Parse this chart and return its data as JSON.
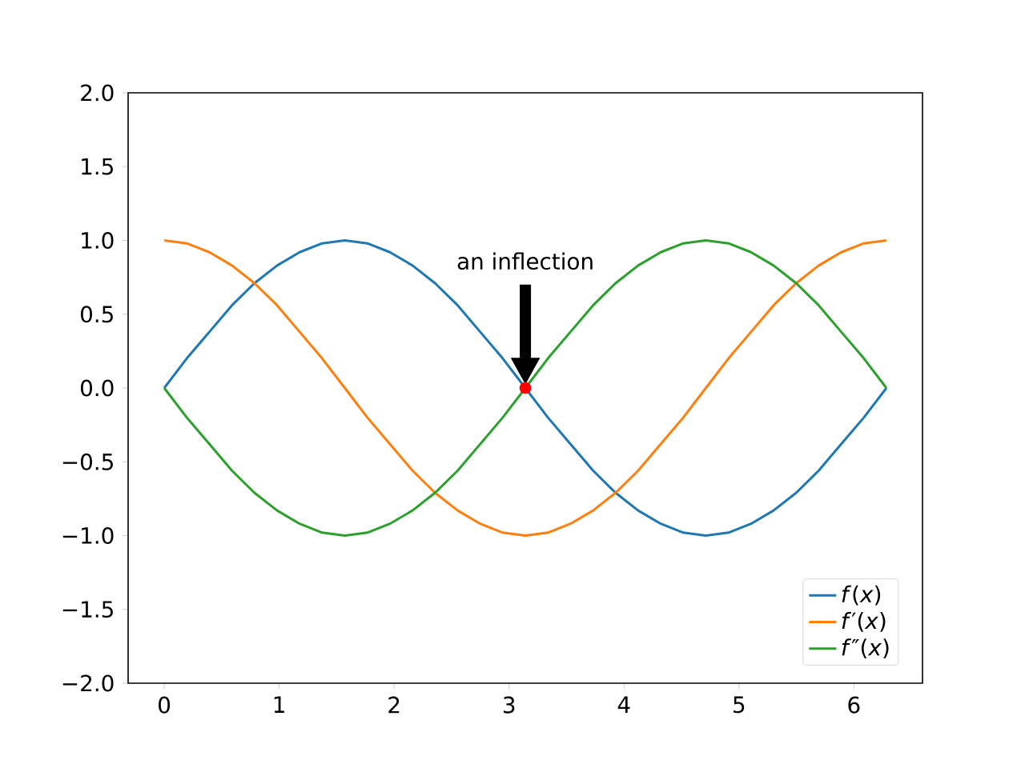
{
  "chart_data": {
    "type": "line",
    "x": [
      0.0,
      0.196,
      0.393,
      0.589,
      0.785,
      0.982,
      1.178,
      1.374,
      1.571,
      1.767,
      1.963,
      2.16,
      2.356,
      2.553,
      2.749,
      2.945,
      3.142,
      3.338,
      3.534,
      3.731,
      3.927,
      4.123,
      4.32,
      4.516,
      4.712,
      4.909,
      5.105,
      5.301,
      5.498,
      5.694,
      5.89,
      6.087,
      6.283
    ],
    "series": [
      {
        "name": "*f*(*x*)",
        "color": "#1f77b4",
        "values": [
          0,
          0.2,
          0.38,
          0.56,
          0.71,
          0.83,
          0.92,
          0.98,
          1,
          0.98,
          0.92,
          0.83,
          0.71,
          0.56,
          0.38,
          0.2,
          0,
          -0.2,
          -0.38,
          -0.56,
          -0.71,
          -0.83,
          -0.92,
          -0.98,
          -1,
          -0.98,
          -0.92,
          -0.83,
          -0.71,
          -0.56,
          -0.38,
          -0.2,
          0
        ]
      },
      {
        "name": "*f*′(*x*)",
        "color": "#ff7f0e",
        "values": [
          1,
          0.98,
          0.92,
          0.83,
          0.71,
          0.56,
          0.38,
          0.2,
          0,
          -0.2,
          -0.38,
          -0.56,
          -0.71,
          -0.83,
          -0.92,
          -0.98,
          -1,
          -0.98,
          -0.92,
          -0.83,
          -0.71,
          -0.56,
          -0.38,
          -0.2,
          0,
          0.2,
          0.38,
          0.56,
          0.71,
          0.83,
          0.92,
          0.98,
          1
        ]
      },
      {
        "name": "*f*″(*x*)",
        "color": "#2ca02c",
        "values": [
          0,
          -0.2,
          -0.38,
          -0.56,
          -0.71,
          -0.83,
          -0.92,
          -0.98,
          -1,
          -0.98,
          -0.92,
          -0.83,
          -0.71,
          -0.56,
          -0.38,
          -0.2,
          0,
          0.2,
          0.38,
          0.56,
          0.71,
          0.83,
          0.92,
          0.98,
          1,
          0.98,
          0.92,
          0.83,
          0.71,
          0.56,
          0.38,
          0.2,
          0
        ]
      },
      {
        "type": "scatter",
        "marker": "circle",
        "color": "#ff0000",
        "x": [
          3.142
        ],
        "values": [
          0
        ]
      }
    ],
    "annotations": [
      "an inflection"
    ],
    "xlim": [
      -0.314,
      6.597
    ],
    "xticks": [
      0,
      1,
      2,
      3,
      4,
      5,
      6
    ],
    "ylim": [
      -2,
      2
    ],
    "yticks": [
      {
        "value": -2,
        "label": "−2.0"
      },
      {
        "value": -1.5,
        "label": "−1.5"
      },
      {
        "value": -1,
        "label": "−1.0"
      },
      {
        "value": -0.5,
        "label": "−0.5"
      },
      {
        "value": 0,
        "label": "0.0"
      },
      {
        "value": 0.5,
        "label": "0.5"
      },
      {
        "value": 1,
        "label": "1.0"
      },
      {
        "value": 1.5,
        "label": "1.5"
      },
      {
        "value": 2,
        "label": "2.0"
      }
    ],
    "legend": "bottom right"
  }
}
